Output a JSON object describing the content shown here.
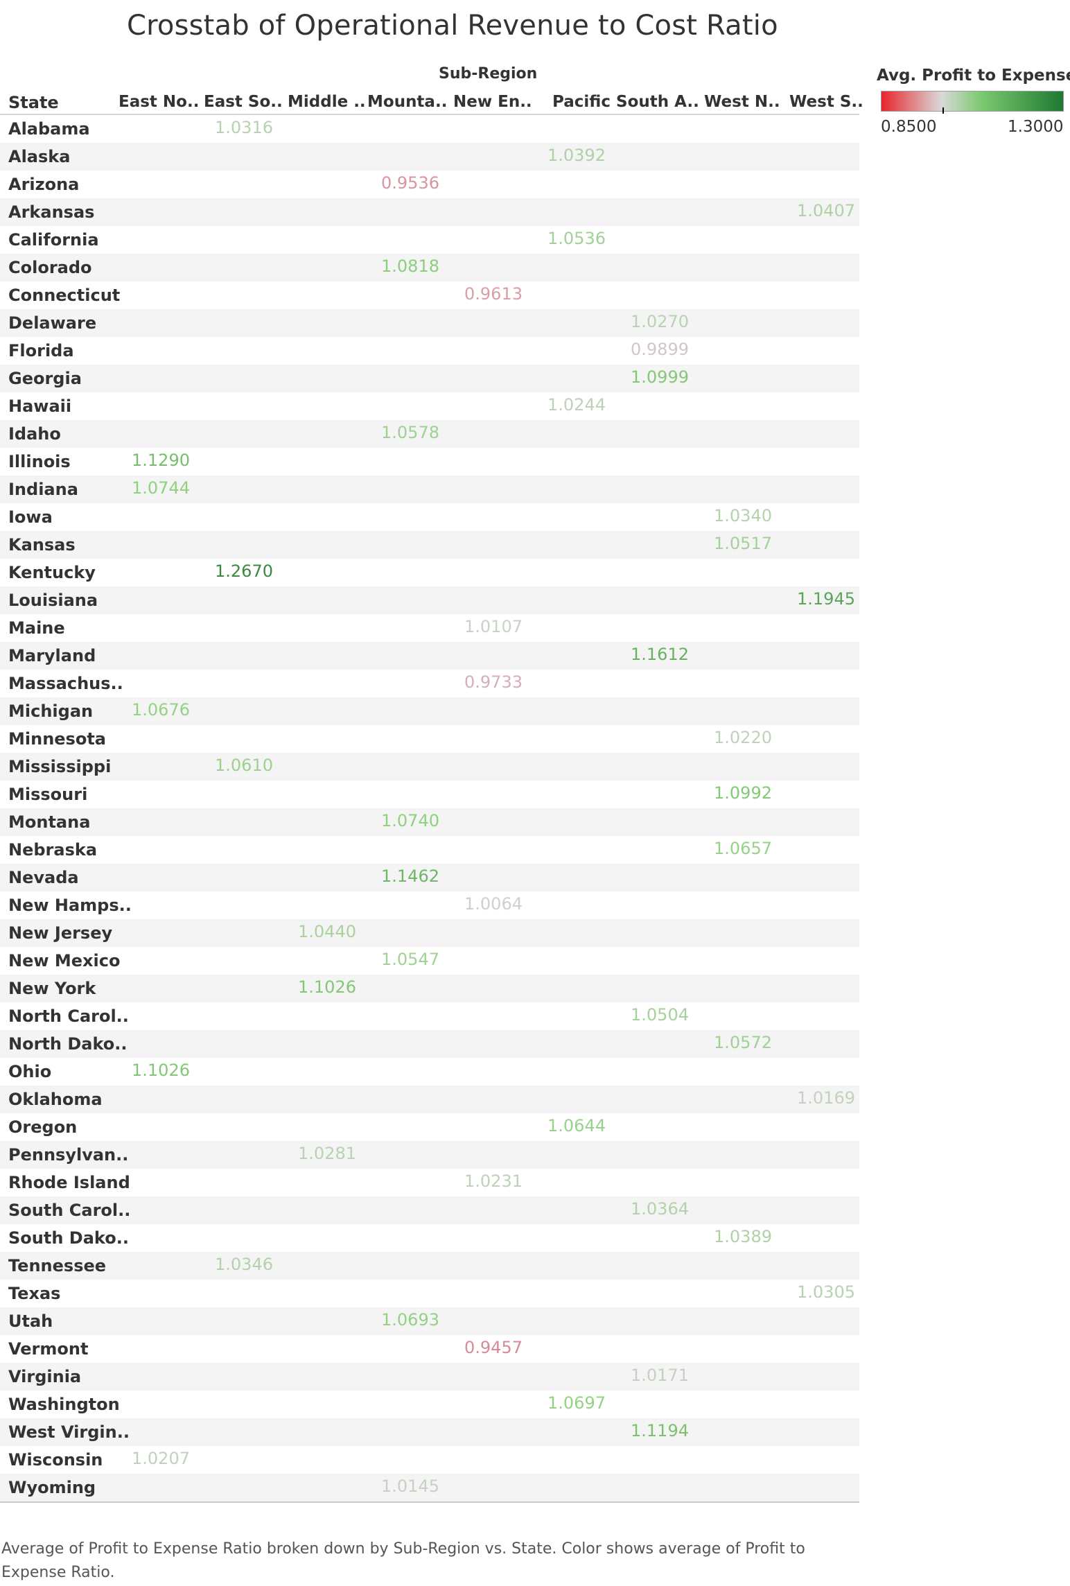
{
  "title": "Crosstab of Operational Revenue to Cost Ratio",
  "legend": {
    "title": "Avg. Profit to Expense ..",
    "min_label": "0.8500",
    "max_label": "1.3000",
    "colors": [
      "#e8262c",
      "#d9d9d9",
      "#7bc96f",
      "#1e7a32"
    ]
  },
  "caption": "Average of Profit to Expense Ratio broken down by Sub-Region vs. State.  Color shows average of Profit to Expense Ratio.",
  "chart_data": {
    "type": "table",
    "row_header": "State",
    "column_group_header": "Sub-Region",
    "columns": [
      "East No..",
      "East So..",
      "Middle ..",
      "Mounta..",
      "New En..",
      "Pacific",
      "South A..",
      "West N..",
      "West S.."
    ],
    "color_range": [
      0.85,
      1.3
    ],
    "rows": [
      {
        "state": "Alabama",
        "col": 1,
        "value": "1.0316"
      },
      {
        "state": "Alaska",
        "col": 5,
        "value": "1.0392"
      },
      {
        "state": "Arizona",
        "col": 3,
        "value": "0.9536"
      },
      {
        "state": "Arkansas",
        "col": 8,
        "value": "1.0407"
      },
      {
        "state": "California",
        "col": 5,
        "value": "1.0536"
      },
      {
        "state": "Colorado",
        "col": 3,
        "value": "1.0818"
      },
      {
        "state": "Connecticut",
        "col": 4,
        "value": "0.9613"
      },
      {
        "state": "Delaware",
        "col": 6,
        "value": "1.0270"
      },
      {
        "state": "Florida",
        "col": 6,
        "value": "0.9899"
      },
      {
        "state": "Georgia",
        "col": 6,
        "value": "1.0999"
      },
      {
        "state": "Hawaii",
        "col": 5,
        "value": "1.0244"
      },
      {
        "state": "Idaho",
        "col": 3,
        "value": "1.0578"
      },
      {
        "state": "Illinois",
        "col": 0,
        "value": "1.1290"
      },
      {
        "state": "Indiana",
        "col": 0,
        "value": "1.0744"
      },
      {
        "state": "Iowa",
        "col": 7,
        "value": "1.0340"
      },
      {
        "state": "Kansas",
        "col": 7,
        "value": "1.0517"
      },
      {
        "state": "Kentucky",
        "col": 1,
        "value": "1.2670"
      },
      {
        "state": "Louisiana",
        "col": 8,
        "value": "1.1945"
      },
      {
        "state": "Maine",
        "col": 4,
        "value": "1.0107"
      },
      {
        "state": "Maryland",
        "col": 6,
        "value": "1.1612"
      },
      {
        "state": "Massachus..",
        "col": 4,
        "value": "0.9733"
      },
      {
        "state": "Michigan",
        "col": 0,
        "value": "1.0676"
      },
      {
        "state": "Minnesota",
        "col": 7,
        "value": "1.0220"
      },
      {
        "state": "Mississippi",
        "col": 1,
        "value": "1.0610"
      },
      {
        "state": "Missouri",
        "col": 7,
        "value": "1.0992"
      },
      {
        "state": "Montana",
        "col": 3,
        "value": "1.0740"
      },
      {
        "state": "Nebraska",
        "col": 7,
        "value": "1.0657"
      },
      {
        "state": "Nevada",
        "col": 3,
        "value": "1.1462"
      },
      {
        "state": "New Hamps..",
        "col": 4,
        "value": "1.0064"
      },
      {
        "state": "New Jersey",
        "col": 2,
        "value": "1.0440"
      },
      {
        "state": "New Mexico",
        "col": 3,
        "value": "1.0547"
      },
      {
        "state": "New York",
        "col": 2,
        "value": "1.1026"
      },
      {
        "state": "North Carol..",
        "col": 6,
        "value": "1.0504"
      },
      {
        "state": "North Dako..",
        "col": 7,
        "value": "1.0572"
      },
      {
        "state": "Ohio",
        "col": 0,
        "value": "1.1026"
      },
      {
        "state": "Oklahoma",
        "col": 8,
        "value": "1.0169"
      },
      {
        "state": "Oregon",
        "col": 5,
        "value": "1.0644"
      },
      {
        "state": "Pennsylvan..",
        "col": 2,
        "value": "1.0281"
      },
      {
        "state": "Rhode Island",
        "col": 4,
        "value": "1.0231"
      },
      {
        "state": "South Carol..",
        "col": 6,
        "value": "1.0364"
      },
      {
        "state": "South Dako..",
        "col": 7,
        "value": "1.0389"
      },
      {
        "state": "Tennessee",
        "col": 1,
        "value": "1.0346"
      },
      {
        "state": "Texas",
        "col": 8,
        "value": "1.0305"
      },
      {
        "state": "Utah",
        "col": 3,
        "value": "1.0693"
      },
      {
        "state": "Vermont",
        "col": 4,
        "value": "0.9457"
      },
      {
        "state": "Virginia",
        "col": 6,
        "value": "1.0171"
      },
      {
        "state": "Washington",
        "col": 5,
        "value": "1.0697"
      },
      {
        "state": "West Virgin..",
        "col": 6,
        "value": "1.1194"
      },
      {
        "state": "Wisconsin",
        "col": 0,
        "value": "1.0207"
      },
      {
        "state": "Wyoming",
        "col": 3,
        "value": "1.0145"
      }
    ]
  }
}
